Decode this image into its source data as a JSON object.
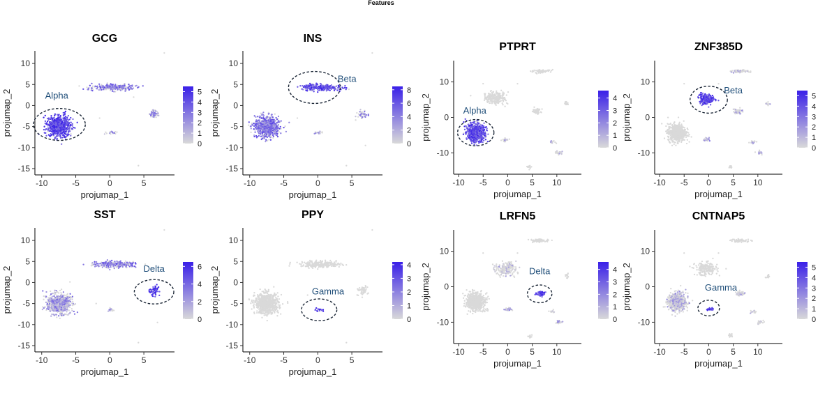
{
  "figure_title": "Features",
  "colors": {
    "low": "#d9d9d9",
    "high": "#3a20e8",
    "annotation": "#1f4e79",
    "axis": "#000000"
  },
  "chart_data": [
    {
      "type": "scatter",
      "title": "GCG",
      "xlabel": "projumap_1",
      "ylabel": "projumap_2",
      "xlim": [
        -11,
        9.5
      ],
      "ylim": [
        -16.5,
        13
      ],
      "xticks": [
        -10,
        -5,
        0,
        5
      ],
      "yticks": [
        10,
        5,
        0,
        -5,
        -10,
        -15
      ],
      "legend": {
        "max": 5.5,
        "ticks": [
          5,
          4,
          3,
          2,
          1,
          0
        ]
      },
      "annotation": {
        "label": "Alpha",
        "cx": -7.4,
        "cy": -4.5,
        "r": 3.8,
        "lx": -7.8,
        "ly": 2.3
      },
      "clusters": [
        {
          "cx": -7.5,
          "cy": -5,
          "sx": 1.15,
          "sy": 1.6,
          "n": 700,
          "e": 0.8
        },
        {
          "cx": 0.5,
          "cy": 4.3,
          "sx": 2.0,
          "sy": 0.5,
          "n": 250,
          "e": 0.5
        },
        {
          "cx": 6.5,
          "cy": -2.0,
          "sx": 0.55,
          "sy": 0.7,
          "n": 50,
          "e": 0.45
        },
        {
          "cx": 0.2,
          "cy": -6.5,
          "sx": 0.5,
          "sy": 0.25,
          "n": 18,
          "e": 0.4
        }
      ],
      "outliers": [
        [
          8.0,
          12.5
        ],
        [
          4.2,
          -14.3
        ],
        [
          3.5,
          2.0
        ],
        [
          -1.5,
          -3.0
        ]
      ]
    },
    {
      "type": "scatter",
      "title": "INS",
      "xlabel": "projumap_1",
      "ylabel": "projumap_2",
      "xlim": [
        -11,
        9.5
      ],
      "ylim": [
        -16.5,
        13
      ],
      "xticks": [
        -10,
        -5,
        0,
        5
      ],
      "yticks": [
        10,
        5,
        0,
        -5,
        -10,
        -15
      ],
      "legend": {
        "max": 8.5,
        "ticks": [
          8,
          6,
          4,
          2,
          0
        ]
      },
      "annotation": {
        "label": "Beta",
        "cx": -0.5,
        "cy": 4.3,
        "r": 3.8,
        "lx": 4.3,
        "ly": 6.3
      },
      "clusters": [
        {
          "cx": -7.5,
          "cy": -5,
          "sx": 1.15,
          "sy": 1.6,
          "n": 700,
          "e": 0.55
        },
        {
          "cx": 0.5,
          "cy": 4.3,
          "sx": 2.0,
          "sy": 0.5,
          "n": 250,
          "e": 0.75
        },
        {
          "cx": 6.5,
          "cy": -2.0,
          "sx": 0.55,
          "sy": 0.7,
          "n": 50,
          "e": 0.4
        },
        {
          "cx": 0.2,
          "cy": -6.5,
          "sx": 0.5,
          "sy": 0.25,
          "n": 18,
          "e": 0.35
        }
      ],
      "outliers": [
        [
          8.0,
          12.5
        ],
        [
          4.2,
          -14.3
        ],
        [
          7.0,
          -9.5
        ],
        [
          -3.0,
          -3.0
        ]
      ]
    },
    {
      "type": "scatter",
      "title": "PTPRT",
      "xlabel": "projumap_1",
      "ylabel": "projumap_2",
      "xlim": [
        -11,
        15
      ],
      "ylim": [
        -16,
        16
      ],
      "xticks": [
        -10,
        -5,
        0,
        5,
        10
      ],
      "yticks": [
        10,
        0,
        -10
      ],
      "legend": {
        "max": 4.6,
        "ticks": [
          4,
          3,
          2,
          1,
          0
        ]
      },
      "annotation": {
        "label": "Alpha",
        "cx": -6.5,
        "cy": -4.3,
        "r": 3.7,
        "lx": -6.7,
        "ly": 1.9
      },
      "clusters": [
        {
          "cx": -6.5,
          "cy": -4.3,
          "sx": 1.2,
          "sy": 1.6,
          "n": 650,
          "e": 0.75
        },
        {
          "cx": -2.5,
          "cy": 5.5,
          "sx": 1.4,
          "sy": 1.1,
          "n": 200,
          "e": 0.0
        },
        {
          "cx": 6.5,
          "cy": 13.0,
          "sx": 1.4,
          "sy": 0.3,
          "n": 60,
          "e": 0.0
        },
        {
          "cx": 6.0,
          "cy": 1.7,
          "sx": 0.6,
          "sy": 0.5,
          "n": 50,
          "e": 0.0
        },
        {
          "cx": -0.5,
          "cy": -6.3,
          "sx": 0.6,
          "sy": 0.3,
          "n": 25,
          "e": 0.2
        },
        {
          "cx": 10.5,
          "cy": -10.0,
          "sx": 0.5,
          "sy": 0.3,
          "n": 20,
          "e": 0.1
        },
        {
          "cx": 9.0,
          "cy": -7.0,
          "sx": 0.5,
          "sy": 0.3,
          "n": 15,
          "e": 0.1
        },
        {
          "cx": 4.5,
          "cy": -14.0,
          "sx": 0.3,
          "sy": 0.4,
          "n": 12,
          "e": 0.0
        },
        {
          "cx": 12.0,
          "cy": 4.0,
          "sx": 0.3,
          "sy": 0.5,
          "n": 12,
          "e": 0.0
        }
      ],
      "outliers": [
        [
          -5.0,
          9.5
        ],
        [
          2.0,
          9.5
        ]
      ]
    },
    {
      "type": "scatter",
      "title": "ZNF385D",
      "xlabel": "projumap_1",
      "ylabel": "projumap_2",
      "xlim": [
        -11,
        15
      ],
      "ylim": [
        -16,
        16
      ],
      "xticks": [
        -10,
        -5,
        0,
        5,
        10
      ],
      "yticks": [
        10,
        0,
        -10
      ],
      "legend": {
        "max": 5.5,
        "ticks": [
          5,
          4,
          3,
          2,
          1,
          0
        ]
      },
      "annotation": {
        "label": "Beta",
        "cx": 0.0,
        "cy": 5.0,
        "r": 3.8,
        "lx": 5.0,
        "ly": 7.6
      },
      "clusters": [
        {
          "cx": -6.5,
          "cy": -4.3,
          "sx": 1.2,
          "sy": 1.6,
          "n": 650,
          "e": 0.0
        },
        {
          "cx": -0.5,
          "cy": 5.2,
          "sx": 1.0,
          "sy": 1.0,
          "n": 220,
          "e": 0.8
        },
        {
          "cx": 6.5,
          "cy": 13.0,
          "sx": 1.4,
          "sy": 0.3,
          "n": 60,
          "e": 0.05
        },
        {
          "cx": 6.0,
          "cy": 1.7,
          "sx": 0.6,
          "sy": 0.5,
          "n": 50,
          "e": 0.15
        },
        {
          "cx": -0.5,
          "cy": -6.3,
          "sx": 0.6,
          "sy": 0.3,
          "n": 25,
          "e": 0.35
        },
        {
          "cx": 10.5,
          "cy": -10.0,
          "sx": 0.5,
          "sy": 0.3,
          "n": 20,
          "e": 0.25
        },
        {
          "cx": 9.0,
          "cy": -7.0,
          "sx": 0.5,
          "sy": 0.3,
          "n": 15,
          "e": 0.15
        },
        {
          "cx": 4.5,
          "cy": -14.0,
          "sx": 0.3,
          "sy": 0.4,
          "n": 12,
          "e": 0.0
        },
        {
          "cx": 12.0,
          "cy": 4.0,
          "sx": 0.3,
          "sy": 0.5,
          "n": 12,
          "e": 0.1
        }
      ],
      "outliers": [
        [
          -5.0,
          9.5
        ],
        [
          2.0,
          9.5
        ]
      ]
    },
    {
      "type": "scatter",
      "title": "SST",
      "xlabel": "projumap_1",
      "ylabel": "projumap_2",
      "xlim": [
        -11,
        9.5
      ],
      "ylim": [
        -16.5,
        13
      ],
      "xticks": [
        -10,
        -5,
        0,
        5
      ],
      "yticks": [
        10,
        5,
        0,
        -5,
        -10,
        -15
      ],
      "legend": {
        "max": 6.5,
        "ticks": [
          6,
          4,
          2,
          0
        ]
      },
      "annotation": {
        "label": "Delta",
        "cx": 6.5,
        "cy": -2.2,
        "r": 2.9,
        "lx": 6.5,
        "ly": 3.2
      },
      "clusters": [
        {
          "cx": -7.5,
          "cy": -5,
          "sx": 1.15,
          "sy": 1.6,
          "n": 700,
          "e": 0.35
        },
        {
          "cx": 0.5,
          "cy": 4.3,
          "sx": 2.0,
          "sy": 0.5,
          "n": 250,
          "e": 0.5
        },
        {
          "cx": 6.5,
          "cy": -2.0,
          "sx": 0.55,
          "sy": 0.7,
          "n": 50,
          "e": 0.85
        },
        {
          "cx": 0.2,
          "cy": -6.5,
          "sx": 0.5,
          "sy": 0.25,
          "n": 18,
          "e": 0.4
        }
      ],
      "outliers": [
        [
          8.0,
          12.5
        ],
        [
          4.2,
          -14.3
        ],
        [
          7.0,
          -9.5
        ],
        [
          -2.0,
          -5.0
        ]
      ]
    },
    {
      "type": "scatter",
      "title": "PPY",
      "xlabel": "projumap_1",
      "ylabel": "projumap_2",
      "xlim": [
        -11,
        9.5
      ],
      "ylim": [
        -16.5,
        13
      ],
      "xticks": [
        -10,
        -5,
        0,
        5
      ],
      "yticks": [
        10,
        5,
        0,
        -5,
        -10,
        -15
      ],
      "legend": {
        "max": 4.2,
        "ticks": [
          4,
          3,
          2,
          1,
          0
        ]
      },
      "annotation": {
        "label": "Gamma",
        "cx": 0.2,
        "cy": -6.5,
        "r": 2.6,
        "lx": 1.5,
        "ly": -2.2
      },
      "clusters": [
        {
          "cx": -7.5,
          "cy": -5,
          "sx": 1.15,
          "sy": 1.6,
          "n": 700,
          "e": 0.0
        },
        {
          "cx": 0.5,
          "cy": 4.3,
          "sx": 2.0,
          "sy": 0.5,
          "n": 250,
          "e": 0.0
        },
        {
          "cx": 6.5,
          "cy": -2.0,
          "sx": 0.55,
          "sy": 0.7,
          "n": 50,
          "e": 0.0
        },
        {
          "cx": 0.2,
          "cy": -6.5,
          "sx": 0.5,
          "sy": 0.25,
          "n": 18,
          "e": 0.75
        }
      ],
      "outliers": [
        [
          8.0,
          12.5
        ],
        [
          4.2,
          -14.3
        ],
        [
          -1.5,
          -3.0
        ]
      ]
    },
    {
      "type": "scatter",
      "title": "LRFN5",
      "xlabel": "projumap_1",
      "ylabel": "projumap_2",
      "xlim": [
        -11,
        15
      ],
      "ylim": [
        -16,
        16
      ],
      "xticks": [
        -10,
        -5,
        0,
        5,
        10
      ],
      "yticks": [
        10,
        0,
        -10
      ],
      "legend": {
        "max": 4.6,
        "ticks": [
          4,
          3,
          2,
          1,
          0
        ]
      },
      "annotation": {
        "label": "Delta",
        "cx": 6.5,
        "cy": -2.0,
        "r": 2.5,
        "lx": 6.5,
        "ly": 4.3
      },
      "clusters": [
        {
          "cx": -6.5,
          "cy": -4.3,
          "sx": 1.2,
          "sy": 1.6,
          "n": 650,
          "e": 0.0
        },
        {
          "cx": -0.5,
          "cy": 5.0,
          "sx": 1.5,
          "sy": 1.2,
          "n": 200,
          "e": 0.1
        },
        {
          "cx": 6.5,
          "cy": 13.0,
          "sx": 1.4,
          "sy": 0.3,
          "n": 60,
          "e": 0.0
        },
        {
          "cx": 6.7,
          "cy": -2.0,
          "sx": 0.55,
          "sy": 0.45,
          "n": 50,
          "e": 0.8
        },
        {
          "cx": 0.0,
          "cy": -6.3,
          "sx": 0.6,
          "sy": 0.3,
          "n": 25,
          "e": 0.35
        },
        {
          "cx": 10.5,
          "cy": -10.0,
          "sx": 0.5,
          "sy": 0.3,
          "n": 20,
          "e": 0.3
        },
        {
          "cx": 9.0,
          "cy": -7.0,
          "sx": 0.5,
          "sy": 0.3,
          "n": 15,
          "e": 0.1
        },
        {
          "cx": 4.5,
          "cy": -14.0,
          "sx": 0.3,
          "sy": 0.4,
          "n": 12,
          "e": 0.0
        },
        {
          "cx": 12.0,
          "cy": 3.0,
          "sx": 0.3,
          "sy": 0.5,
          "n": 12,
          "e": 0.0
        }
      ],
      "outliers": [
        [
          -5.0,
          9.5
        ],
        [
          2.0,
          9.5
        ]
      ]
    },
    {
      "type": "scatter",
      "title": "CNTNAP5",
      "xlabel": "projumap_1",
      "ylabel": "projumap_2",
      "xlim": [
        -11,
        15
      ],
      "ylim": [
        -16,
        16
      ],
      "xticks": [
        -10,
        -5,
        0,
        5,
        10
      ],
      "yticks": [
        10,
        0,
        -10
      ],
      "legend": {
        "max": 5.5,
        "ticks": [
          5,
          4,
          3,
          2,
          1,
          0
        ]
      },
      "annotation": {
        "label": "Gamma",
        "cx": 0.0,
        "cy": -6.0,
        "r": 2.2,
        "lx": 2.5,
        "ly": -0.3
      },
      "clusters": [
        {
          "cx": -6.5,
          "cy": -4.3,
          "sx": 1.2,
          "sy": 1.6,
          "n": 650,
          "e": 0.15
        },
        {
          "cx": -0.5,
          "cy": 5.0,
          "sx": 1.5,
          "sy": 1.2,
          "n": 200,
          "e": 0.0
        },
        {
          "cx": 6.5,
          "cy": 13.0,
          "sx": 1.4,
          "sy": 0.3,
          "n": 60,
          "e": 0.0
        },
        {
          "cx": 6.5,
          "cy": -1.8,
          "sx": 0.6,
          "sy": 0.5,
          "n": 50,
          "e": 0.15
        },
        {
          "cx": 0.3,
          "cy": -6.3,
          "sx": 0.5,
          "sy": 0.25,
          "n": 25,
          "e": 0.75
        },
        {
          "cx": 10.5,
          "cy": -10.0,
          "sx": 0.5,
          "sy": 0.3,
          "n": 20,
          "e": 0.1
        },
        {
          "cx": 9.0,
          "cy": -7.0,
          "sx": 0.5,
          "sy": 0.3,
          "n": 15,
          "e": 0.1
        },
        {
          "cx": 4.5,
          "cy": -14.0,
          "sx": 0.3,
          "sy": 0.4,
          "n": 12,
          "e": 0.0
        },
        {
          "cx": 12.0,
          "cy": 3.0,
          "sx": 0.3,
          "sy": 0.5,
          "n": 12,
          "e": 0.0
        }
      ],
      "outliers": [
        [
          -5.0,
          9.5
        ],
        [
          2.0,
          9.5
        ]
      ]
    }
  ]
}
